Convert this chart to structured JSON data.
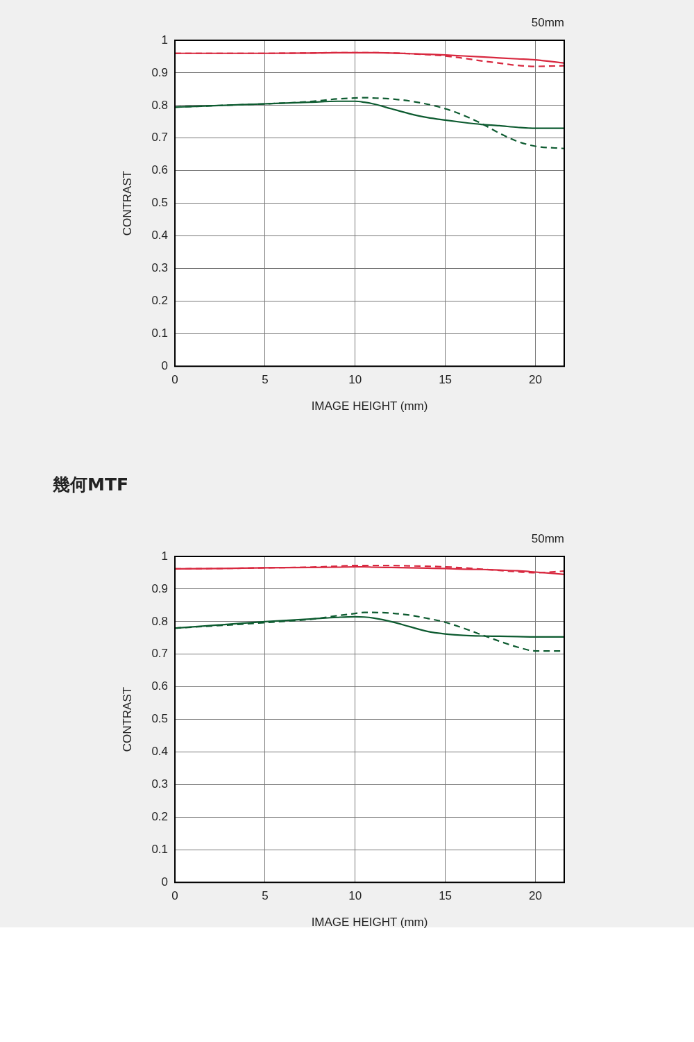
{
  "chart_data": [
    {
      "type": "line",
      "subtitle": "50mm",
      "xlabel": "IMAGE HEIGHT (mm)",
      "ylabel": "CONTRAST",
      "x": [
        0,
        2.5,
        5,
        7.5,
        9,
        10,
        10.5,
        11,
        12,
        13,
        14,
        15,
        16,
        17,
        18,
        19,
        20,
        21.6
      ],
      "xlim": [
        0,
        21.6
      ],
      "xticks": [
        0,
        5,
        10,
        15,
        20
      ],
      "ylim": [
        0,
        1
      ],
      "yticks": [
        0,
        0.1,
        0.2,
        0.3,
        0.4,
        0.5,
        0.6,
        0.7,
        0.8,
        0.9,
        1
      ],
      "grid": true,
      "legend": false,
      "marker": "none",
      "series": [
        {
          "color": "#d8283f",
          "line_style": "solid",
          "values": [
            0.96,
            0.96,
            0.96,
            0.961,
            0.962,
            0.962,
            0.962,
            0.962,
            0.961,
            0.959,
            0.957,
            0.955,
            0.952,
            0.949,
            0.946,
            0.943,
            0.94,
            0.93
          ]
        },
        {
          "color": "#d8283f",
          "line_style": "dashed",
          "values": [
            0.96,
            0.96,
            0.96,
            0.961,
            0.962,
            0.962,
            0.962,
            0.962,
            0.961,
            0.959,
            0.956,
            0.952,
            0.945,
            0.937,
            0.93,
            0.923,
            0.92,
            0.922
          ]
        },
        {
          "color": "#0d5b30",
          "line_style": "solid",
          "values": [
            0.795,
            0.8,
            0.805,
            0.81,
            0.813,
            0.813,
            0.81,
            0.805,
            0.79,
            0.775,
            0.763,
            0.755,
            0.748,
            0.742,
            0.738,
            0.733,
            0.73,
            0.73
          ]
        },
        {
          "color": "#0d5b30",
          "line_style": "dashed",
          "values": [
            0.795,
            0.8,
            0.805,
            0.812,
            0.82,
            0.823,
            0.824,
            0.823,
            0.82,
            0.814,
            0.804,
            0.79,
            0.77,
            0.745,
            0.715,
            0.69,
            0.675,
            0.668
          ]
        }
      ]
    },
    {
      "type": "line",
      "title": "幾何MTF",
      "subtitle": "50mm",
      "xlabel": "IMAGE HEIGHT (mm)",
      "ylabel": "CONTRAST",
      "x": [
        0,
        2.5,
        5,
        7.5,
        9,
        10,
        10.5,
        11,
        12,
        13,
        14,
        15,
        16,
        17,
        18,
        19,
        20,
        21.6
      ],
      "xlim": [
        0,
        21.6
      ],
      "xticks": [
        0,
        5,
        10,
        15,
        20
      ],
      "ylim": [
        0,
        1
      ],
      "yticks": [
        0,
        0.1,
        0.2,
        0.3,
        0.4,
        0.5,
        0.6,
        0.7,
        0.8,
        0.9,
        1
      ],
      "grid": true,
      "legend": false,
      "marker": "none",
      "series": [
        {
          "color": "#d8283f",
          "line_style": "solid",
          "values": [
            0.962,
            0.963,
            0.965,
            0.966,
            0.967,
            0.968,
            0.968,
            0.967,
            0.966,
            0.965,
            0.964,
            0.963,
            0.961,
            0.96,
            0.958,
            0.956,
            0.952,
            0.945
          ]
        },
        {
          "color": "#d8283f",
          "line_style": "dashed",
          "values": [
            0.962,
            0.963,
            0.965,
            0.967,
            0.97,
            0.972,
            0.972,
            0.972,
            0.972,
            0.971,
            0.97,
            0.968,
            0.965,
            0.961,
            0.957,
            0.953,
            0.95,
            0.955
          ]
        },
        {
          "color": "#0d5b30",
          "line_style": "solid",
          "values": [
            0.78,
            0.79,
            0.8,
            0.808,
            0.813,
            0.815,
            0.814,
            0.811,
            0.8,
            0.785,
            0.77,
            0.762,
            0.758,
            0.756,
            0.755,
            0.754,
            0.753,
            0.753
          ]
        },
        {
          "color": "#0d5b30",
          "line_style": "dashed",
          "values": [
            0.78,
            0.788,
            0.797,
            0.807,
            0.818,
            0.825,
            0.828,
            0.828,
            0.826,
            0.82,
            0.81,
            0.798,
            0.78,
            0.76,
            0.74,
            0.722,
            0.71,
            0.71
          ]
        }
      ]
    }
  ]
}
